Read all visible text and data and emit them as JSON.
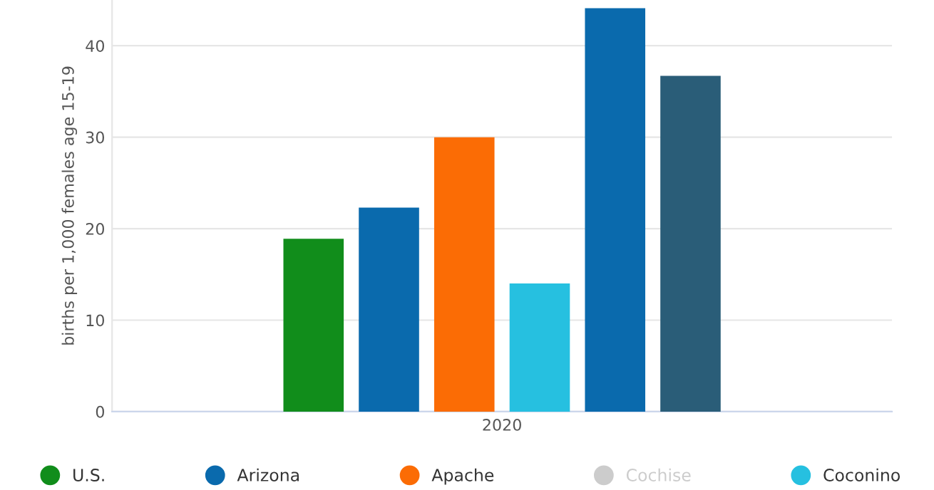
{
  "chart_data": {
    "type": "bar",
    "ylabel": "births per 1,000 females age 15-19",
    "categories": [
      "2020"
    ],
    "series": [
      {
        "name": "U.S.",
        "color": "#118d1b",
        "values": [
          18.9
        ]
      },
      {
        "name": "Arizona",
        "color": "#0a6aad",
        "values": [
          22.3
        ]
      },
      {
        "name": "Apache",
        "color": "#fb6c05",
        "values": [
          30.0
        ]
      },
      {
        "name": "Cochise",
        "color": "#cccccc",
        "values": [
          null
        ]
      },
      {
        "name": "Coconino",
        "color": "#26c0e0",
        "values": [
          14.0
        ]
      },
      {
        "color": "#0a6aad",
        "values": [
          44.1
        ]
      },
      {
        "color": "#2a5d78",
        "values": [
          36.7
        ]
      }
    ],
    "ylim": [
      0,
      45
    ],
    "yticks": [
      0,
      10,
      20,
      30,
      40
    ],
    "grid": "y",
    "legend": "bottom",
    "marker": "circle"
  }
}
